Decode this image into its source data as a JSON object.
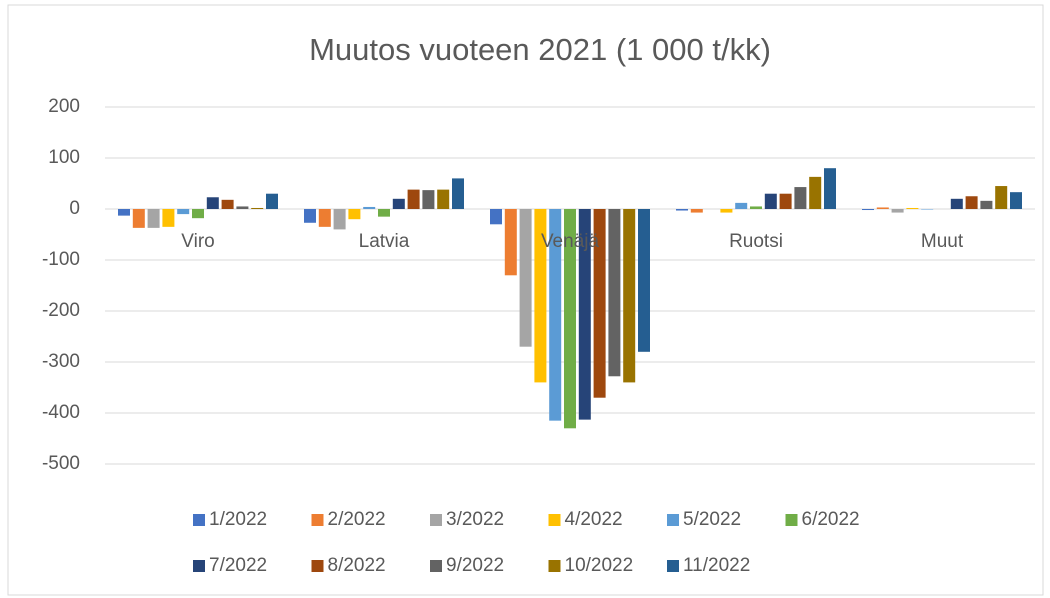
{
  "chart_data": {
    "type": "bar",
    "title": "Muutos vuoteen 2021 (1 000 t/kk)",
    "categories": [
      "Viro",
      "Latvia",
      "Venäjä",
      "Ruotsi",
      "Muut"
    ],
    "series": [
      {
        "name": "1/2022",
        "color": "#4472C4",
        "values": [
          -13,
          -27,
          -30,
          -3,
          -2
        ]
      },
      {
        "name": "2/2022",
        "color": "#ED7D31",
        "values": [
          -37,
          -35,
          -130,
          -7,
          3
        ]
      },
      {
        "name": "3/2022",
        "color": "#A5A5A5",
        "values": [
          -37,
          -40,
          -270,
          0,
          -7
        ]
      },
      {
        "name": "4/2022",
        "color": "#FFC000",
        "values": [
          -35,
          -20,
          -340,
          -7,
          2
        ]
      },
      {
        "name": "5/2022",
        "color": "#5B9BD5",
        "values": [
          -10,
          4,
          -415,
          12,
          -1
        ]
      },
      {
        "name": "6/2022",
        "color": "#70AD47",
        "values": [
          -18,
          -15,
          -430,
          5,
          0
        ]
      },
      {
        "name": "7/2022",
        "color": "#264478",
        "values": [
          23,
          20,
          -413,
          30,
          20
        ]
      },
      {
        "name": "8/2022",
        "color": "#9E480E",
        "values": [
          18,
          38,
          -370,
          30,
          25
        ]
      },
      {
        "name": "9/2022",
        "color": "#636363",
        "values": [
          5,
          37,
          -328,
          43,
          16
        ]
      },
      {
        "name": "10/2022",
        "color": "#997300",
        "values": [
          2,
          38,
          -340,
          63,
          45
        ]
      },
      {
        "name": "11/2022",
        "color": "#255E91",
        "values": [
          30,
          60,
          -280,
          80,
          33
        ]
      }
    ],
    "ylim": [
      -500,
      200
    ],
    "yticks": [
      -500,
      -400,
      -300,
      -200,
      -100,
      0,
      100,
      200
    ],
    "grid": true,
    "legend": "bottom"
  }
}
